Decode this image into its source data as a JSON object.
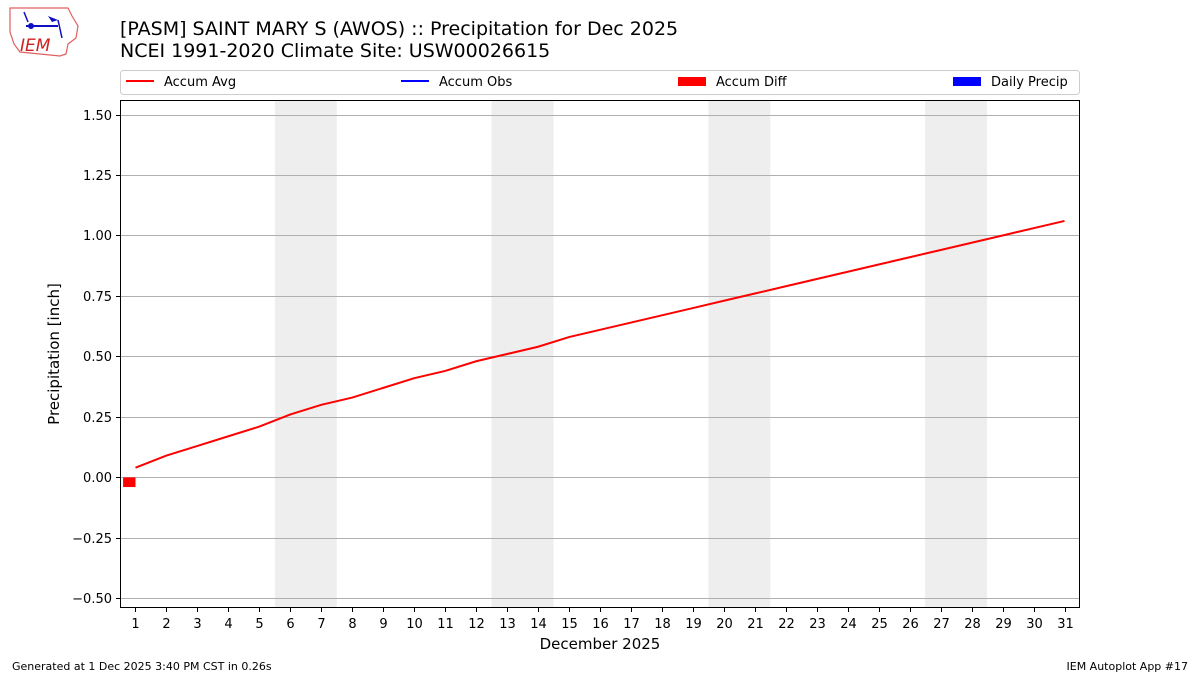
{
  "header": {
    "title_line1": "[PASM] SAINT MARY S (AWOS) :: Precipitation for Dec 2025",
    "title_line2": "NCEI 1991-2020 Climate Site: USW00026615",
    "logo_text": "IEM"
  },
  "footer": {
    "generated": "Generated at 1 Dec 2025 3:40 PM CST in 0.26s",
    "app": "IEM Autoplot App #17"
  },
  "chart_data": {
    "type": "line",
    "xlabel": "December 2025",
    "ylabel": "Precipitation [inch]",
    "xlim": [
      0.5,
      31.5
    ],
    "ylim": [
      -0.54,
      1.56
    ],
    "grid": true,
    "legend_placement": "top",
    "x_ticks": [
      1,
      2,
      3,
      4,
      5,
      6,
      7,
      8,
      9,
      10,
      11,
      12,
      13,
      14,
      15,
      16,
      17,
      18,
      19,
      20,
      21,
      22,
      23,
      24,
      25,
      26,
      27,
      28,
      29,
      30,
      31
    ],
    "y_ticks": [
      "1.50",
      "1.25",
      "1.00",
      "0.75",
      "0.50",
      "0.25",
      "0.00",
      "−0.25",
      "−0.50"
    ],
    "y_tick_values": [
      1.5,
      1.25,
      1.0,
      0.75,
      0.5,
      0.25,
      0.0,
      -0.25,
      -0.5
    ],
    "weekend_shading": [
      [
        5.5,
        7.5
      ],
      [
        12.5,
        14.5
      ],
      [
        19.5,
        21.5
      ],
      [
        26.5,
        28.5
      ]
    ],
    "legend": [
      {
        "name": "Accum Avg",
        "kind": "line",
        "color": "#ff0000"
      },
      {
        "name": "Accum Obs",
        "kind": "line",
        "color": "#0000ff"
      },
      {
        "name": "Accum Diff",
        "kind": "bar",
        "color": "#ff0000"
      },
      {
        "name": "Daily Precip",
        "kind": "bar",
        "color": "#0000ff"
      }
    ],
    "series": [
      {
        "name": "Accum Avg",
        "color": "#ff0000",
        "x": [
          1,
          2,
          3,
          4,
          5,
          6,
          7,
          8,
          9,
          10,
          11,
          12,
          13,
          14,
          15,
          16,
          17,
          18,
          19,
          20,
          21,
          22,
          23,
          24,
          25,
          26,
          27,
          28,
          29,
          30,
          31
        ],
        "values": [
          0.04,
          0.09,
          0.13,
          0.17,
          0.21,
          0.26,
          0.3,
          0.33,
          0.37,
          0.41,
          0.44,
          0.48,
          0.51,
          0.54,
          0.58,
          0.61,
          0.64,
          0.67,
          0.7,
          0.73,
          0.76,
          0.79,
          0.82,
          0.85,
          0.88,
          0.91,
          0.94,
          0.97,
          1.0,
          1.03,
          1.06
        ]
      },
      {
        "name": "Accum Diff",
        "color": "#ff0000",
        "type": "bar",
        "x": [
          1
        ],
        "values": [
          -0.04
        ]
      }
    ]
  }
}
